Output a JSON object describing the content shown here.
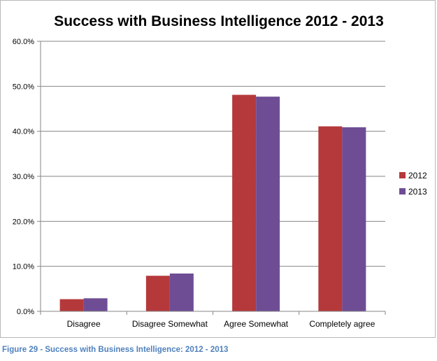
{
  "chart_data": {
    "type": "bar",
    "title": "Success with Business Intelligence 2012 - 2013",
    "xlabel": "",
    "ylabel": "",
    "categories": [
      "Disagree",
      "Disagree Somewhat",
      "Agree Somewhat",
      "Completely agree"
    ],
    "series": [
      {
        "name": "2012",
        "color": "#b5393b",
        "values": [
          2.7,
          7.9,
          48.1,
          41.1
        ]
      },
      {
        "name": "2013",
        "color": "#6e4d95",
        "values": [
          2.9,
          8.4,
          47.7,
          40.9
        ]
      }
    ],
    "ylim": [
      0,
      60
    ],
    "yticks": [
      "0.0%",
      "10.0%",
      "20.0%",
      "30.0%",
      "40.0%",
      "50.0%",
      "60.0%"
    ],
    "grid": true,
    "legend": "right"
  },
  "caption": "Figure 29 - Success with Business Intelligence: 2012 - 2013"
}
